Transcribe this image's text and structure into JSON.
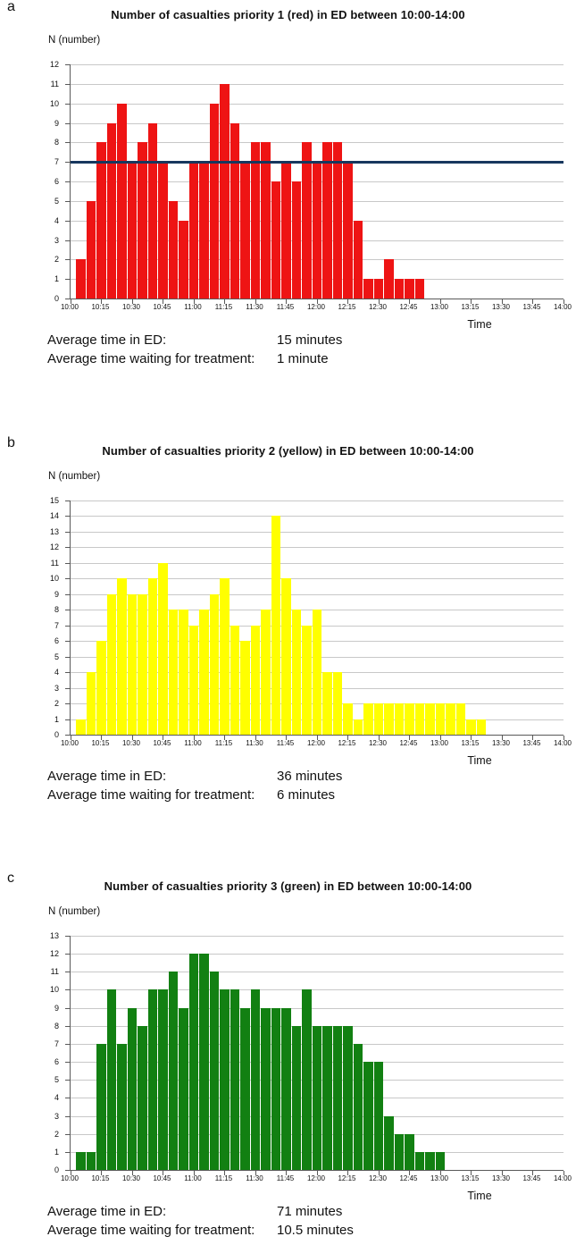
{
  "colors": {
    "gridline": "#c8c8c8",
    "axis": "#595959",
    "text": "#111111",
    "reference_line": "#17375e",
    "priority1_red": "#ee1414",
    "priority2_yellow": "#ffff00",
    "priority3_green": "#128012"
  },
  "chart_data": [
    {
      "type": "bar",
      "panel_label": "a",
      "title": "Number of casualties priority 1 (red) in ED between 10:00-14:00",
      "ylabel": "N (number)",
      "xlabel": "Time",
      "bar_color": "#ee1414",
      "ylim": [
        0,
        12
      ],
      "y_tick_step": 1,
      "grid": true,
      "bin_minutes": 5,
      "x_axis_range": [
        "10:00",
        "14:00"
      ],
      "x_tick_labels": [
        "10:00",
        "10:15",
        "10:30",
        "10:45",
        "11:00",
        "11:15",
        "11:30",
        "11:45",
        "12:00",
        "12:15",
        "12:30",
        "12:45",
        "13:00",
        "13:15",
        "13:30",
        "13:45",
        "14:00"
      ],
      "categories": [
        "10:05",
        "10:10",
        "10:15",
        "10:20",
        "10:25",
        "10:30",
        "10:35",
        "10:40",
        "10:45",
        "10:50",
        "10:55",
        "11:00",
        "11:05",
        "11:10",
        "11:15",
        "11:20",
        "11:25",
        "11:30",
        "11:35",
        "11:40",
        "11:45",
        "11:50",
        "11:55",
        "12:00",
        "12:05",
        "12:10",
        "12:15",
        "12:20",
        "12:25",
        "12:30",
        "12:35",
        "12:40",
        "12:45",
        "12:50"
      ],
      "values": [
        2,
        5,
        8,
        9,
        10,
        7,
        8,
        9,
        7,
        5,
        4,
        7,
        7,
        10,
        11,
        9,
        7,
        8,
        8,
        6,
        7,
        6,
        8,
        7,
        8,
        8,
        7,
        4,
        1,
        1,
        2,
        1,
        1,
        1
      ],
      "reference_line": {
        "value": 7,
        "color": "#17375e"
      },
      "stats": [
        {
          "label": "Average time in ED:",
          "value": "15 minutes"
        },
        {
          "label": "Average time waiting for treatment:",
          "value": "1 minute"
        }
      ]
    },
    {
      "type": "bar",
      "panel_label": "b",
      "title": "Number of casualties priority 2 (yellow) in ED between 10:00-14:00",
      "ylabel": "N (number)",
      "xlabel": "Time",
      "bar_color": "#ffff00",
      "ylim": [
        0,
        15
      ],
      "y_tick_step": 1,
      "grid": true,
      "bin_minutes": 5,
      "x_axis_range": [
        "10:00",
        "14:00"
      ],
      "x_tick_labels": [
        "10:00",
        "10:15",
        "10:30",
        "10:45",
        "11:00",
        "11:15",
        "11:30",
        "11:45",
        "12:00",
        "12:15",
        "12:30",
        "12:45",
        "13:00",
        "13:15",
        "13:30",
        "13:45",
        "14:00"
      ],
      "categories": [
        "10:05",
        "10:10",
        "10:15",
        "10:20",
        "10:25",
        "10:30",
        "10:35",
        "10:40",
        "10:45",
        "10:50",
        "10:55",
        "11:00",
        "11:05",
        "11:10",
        "11:15",
        "11:20",
        "11:25",
        "11:30",
        "11:35",
        "11:40",
        "11:45",
        "11:50",
        "11:55",
        "12:00",
        "12:05",
        "12:10",
        "12:15",
        "12:20",
        "12:25",
        "12:30",
        "12:35",
        "12:40",
        "12:45",
        "12:50",
        "12:55",
        "13:00",
        "13:05",
        "13:10",
        "13:15",
        "13:20"
      ],
      "values": [
        1,
        4,
        6,
        9,
        10,
        9,
        9,
        10,
        11,
        8,
        8,
        7,
        8,
        9,
        10,
        7,
        6,
        7,
        8,
        14,
        10,
        8,
        7,
        8,
        4,
        4,
        2,
        1,
        2,
        2,
        2,
        2,
        2,
        2,
        2,
        2,
        2,
        2,
        1,
        1
      ],
      "reference_line": null,
      "stats": [
        {
          "label": "Average time in ED:",
          "value": "36 minutes"
        },
        {
          "label": "Average time waiting for treatment:",
          "value": "6 minutes"
        }
      ]
    },
    {
      "type": "bar",
      "panel_label": "c",
      "title": "Number of casualties priority 3 (green) in ED between 10:00-14:00",
      "ylabel": "N (number)",
      "xlabel": "Time",
      "bar_color": "#128012",
      "ylim": [
        0,
        13
      ],
      "y_tick_step": 1,
      "grid": true,
      "bin_minutes": 5,
      "x_axis_range": [
        "10:00",
        "14:00"
      ],
      "x_tick_labels": [
        "10:00",
        "10:15",
        "10:30",
        "10:45",
        "11:00",
        "11:15",
        "11:30",
        "11:45",
        "12:00",
        "12:15",
        "12:30",
        "12:45",
        "13:00",
        "13:15",
        "13:30",
        "13:45",
        "14:00"
      ],
      "categories": [
        "10:05",
        "10:10",
        "10:15",
        "10:20",
        "10:25",
        "10:30",
        "10:35",
        "10:40",
        "10:45",
        "10:50",
        "10:55",
        "11:00",
        "11:05",
        "11:10",
        "11:15",
        "11:20",
        "11:25",
        "11:30",
        "11:35",
        "11:40",
        "11:45",
        "11:50",
        "11:55",
        "12:00",
        "12:05",
        "12:10",
        "12:15",
        "12:20",
        "12:25",
        "12:30",
        "12:35",
        "12:40",
        "12:45",
        "12:50",
        "12:55",
        "13:00"
      ],
      "values": [
        1,
        1,
        7,
        10,
        7,
        9,
        8,
        10,
        10,
        11,
        9,
        12,
        12,
        11,
        10,
        10,
        9,
        10,
        9,
        9,
        9,
        8,
        10,
        8,
        8,
        8,
        8,
        7,
        6,
        6,
        3,
        2,
        2,
        1,
        1,
        1
      ],
      "reference_line": null,
      "stats": [
        {
          "label": "Average time in ED:",
          "value": "71 minutes"
        },
        {
          "label": "Average time waiting for treatment:",
          "value": "10.5 minutes"
        }
      ]
    }
  ]
}
